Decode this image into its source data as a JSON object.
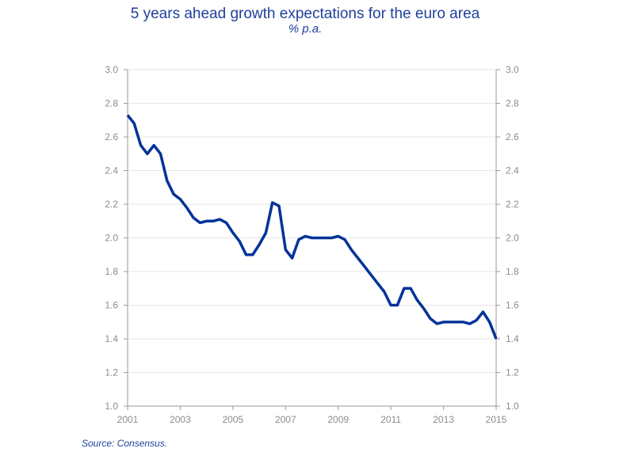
{
  "title": "5 years ahead growth expectations for the euro area",
  "subtitle": "% p.a.",
  "source": "Source: Consensus.",
  "colors": {
    "line": "#003399",
    "text": "#1f3f9a",
    "axis": "#999999",
    "grid": "#e6e6e6",
    "tick_text": "#8c8c8c"
  },
  "chart_data": {
    "type": "line",
    "title": "5 years ahead growth expectations for the euro area",
    "subtitle": "% p.a.",
    "xlabel": "",
    "ylabel": "",
    "xlim": [
      2001,
      2015
    ],
    "ylim": [
      1.0,
      3.0
    ],
    "x_ticks": [
      "2001",
      "2003",
      "2005",
      "2007",
      "2009",
      "2011",
      "2013",
      "2015"
    ],
    "y_ticks": [
      "1.0",
      "1.2",
      "1.4",
      "1.6",
      "1.8",
      "2.0",
      "2.2",
      "2.4",
      "2.6",
      "2.8",
      "3.0"
    ],
    "y_axis_right": true,
    "grid": true,
    "series": [
      {
        "x": [
          2001.0,
          2001.25,
          2001.5,
          2001.75,
          2002.0,
          2002.25,
          2002.5,
          2002.75,
          2003.0,
          2003.25,
          2003.5,
          2003.75,
          2004.0,
          2004.25,
          2004.5,
          2004.75,
          2005.0,
          2005.25,
          2005.5,
          2005.75,
          2006.0,
          2006.25,
          2006.5,
          2006.75,
          2007.0,
          2007.25,
          2007.5,
          2007.75,
          2008.0,
          2008.25,
          2008.5,
          2008.75,
          2009.0,
          2009.25,
          2009.5,
          2009.75,
          2010.0,
          2010.25,
          2010.5,
          2010.75,
          2011.0,
          2011.25,
          2011.5,
          2011.75,
          2012.0,
          2012.25,
          2012.5,
          2012.75,
          2013.0,
          2013.25,
          2013.5,
          2013.75,
          2014.0,
          2014.25,
          2014.5,
          2014.75,
          2015.0
        ],
        "values": [
          2.73,
          2.68,
          2.55,
          2.5,
          2.55,
          2.5,
          2.34,
          2.26,
          2.23,
          2.18,
          2.12,
          2.09,
          2.1,
          2.1,
          2.11,
          2.09,
          2.03,
          1.98,
          1.9,
          1.9,
          1.96,
          2.03,
          2.21,
          2.19,
          1.93,
          1.88,
          1.99,
          2.01,
          2.0,
          2.0,
          2.0,
          2.0,
          2.01,
          1.99,
          1.93,
          1.88,
          1.83,
          1.78,
          1.73,
          1.68,
          1.6,
          1.6,
          1.7,
          1.7,
          1.63,
          1.58,
          1.52,
          1.49,
          1.5,
          1.5,
          1.5,
          1.5,
          1.49,
          1.51,
          1.56,
          1.5,
          1.4
        ]
      }
    ]
  }
}
